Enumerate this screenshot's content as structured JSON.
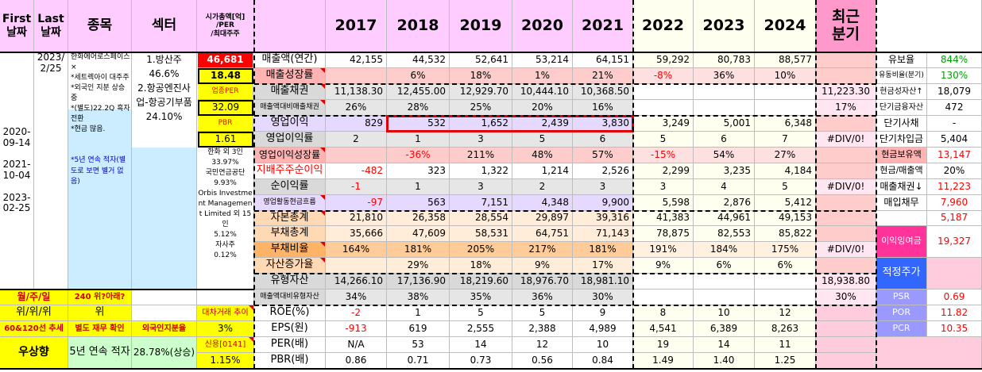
{
  "header": {
    "first_date": "First\n날짜",
    "last_date": "Last\n날짜",
    "stock": "종목",
    "sector": "섹터",
    "mcap_label": "시가총액[억]\n/PER\n/최대주주",
    "years": [
      "2017",
      "2018",
      "2019",
      "2020",
      "2021",
      "2022",
      "2023",
      "2024"
    ],
    "recent_quarter": "최근\n분기"
  },
  "info": {
    "first_dates": [
      "2020-",
      "09-14",
      "",
      "2021-",
      "10-04",
      "",
      "2023-",
      "02-25"
    ],
    "last_dates": [
      "2023/",
      "2/25"
    ],
    "company_notes": "한화에어로스페이스×\n*세트렉아이 대주주\n*외국인 지분 상승중\n*(별도)22.2Q 흑자 전환\n*현금 많음.",
    "company_notes2": "*5년 연속 적자(별도로 보면 별거 없음)",
    "sector_lines": [
      "1.방산주",
      "46.6%",
      "2.항공엔진사업-항공기부품",
      "24.10%"
    ],
    "market_cap": "46,681",
    "per": "18.48",
    "industry_per_label": "업종PER",
    "industry_per": "32.09",
    "pbr_label": "PBR",
    "pbr": "1.61",
    "shareholders": "한화 외 3인\n33.97%\n국민연금공단\n9.93%\nOrbis Investment Management Limited 외 15인\n5.12%\n자사주\n0.12%"
  },
  "rows": [
    {
      "label": "매출액(연간)",
      "vals": [
        "42,155",
        "44,532",
        "52,641",
        "53,214",
        "64,151",
        "59,292",
        "80,783",
        "88,577"
      ],
      "recent": ""
    },
    {
      "label": "매출성장률",
      "vals": [
        "",
        "6%",
        "18%",
        "1%",
        "21%",
        "-8%",
        "36%",
        "10%"
      ],
      "recent": ""
    },
    {
      "label": "매출채권",
      "vals": [
        "11,138.30",
        "12,455.00",
        "12,929.70",
        "10,444.10",
        "10,368.50",
        "",
        "",
        ""
      ],
      "recent": "11,223.30"
    },
    {
      "label": "매출액대비매출채권",
      "vals": [
        "26%",
        "28%",
        "25%",
        "20%",
        "16%",
        "",
        "",
        ""
      ],
      "recent": "17%"
    },
    {
      "label": "영업이익",
      "vals": [
        "829",
        "532",
        "1,652",
        "2,439",
        "3,830",
        "3,249",
        "5,001",
        "6,348"
      ],
      "recent": ""
    },
    {
      "label": "영업이익률",
      "vals": [
        "2",
        "1",
        "3",
        "5",
        "6",
        "5",
        "6",
        "7"
      ],
      "recent": "#DIV/0!"
    },
    {
      "label": "영업이익성장률",
      "vals": [
        "",
        "-36%",
        "211%",
        "48%",
        "57%",
        "-15%",
        "54%",
        "27%"
      ],
      "recent": ""
    },
    {
      "label": "지배주주순이익",
      "vals": [
        "-482",
        "323",
        "1,322",
        "1,214",
        "2,526",
        "2,299",
        "3,235",
        "4,184"
      ],
      "recent": ""
    },
    {
      "label": "순이익률",
      "vals": [
        "-1",
        "1",
        "3",
        "2",
        "3",
        "3",
        "4",
        "5"
      ],
      "recent": "#DIV/0!"
    },
    {
      "label": "영업활동현금흐름",
      "vals": [
        "-97",
        "563",
        "7,151",
        "4,348",
        "9,900",
        "5,598",
        "2,876",
        "5,412"
      ],
      "recent": ""
    },
    {
      "label": "자본총계",
      "vals": [
        "21,810",
        "26,358",
        "28,554",
        "29,897",
        "39,316",
        "41,383",
        "44,961",
        "49,153"
      ],
      "recent": ""
    },
    {
      "label": "부채총계",
      "vals": [
        "35,666",
        "47,609",
        "58,531",
        "64,751",
        "71,143",
        "78,875",
        "82,553",
        "85,822"
      ],
      "recent": ""
    },
    {
      "label": "부채비율",
      "vals": [
        "164%",
        "181%",
        "205%",
        "217%",
        "181%",
        "191%",
        "184%",
        "175%"
      ],
      "recent": "#DIV/0!"
    },
    {
      "label": "자산증가율",
      "vals": [
        "",
        "29%",
        "18%",
        "9%",
        "17%",
        "9%",
        "6%",
        "6%"
      ],
      "recent": ""
    },
    {
      "label": "유형자산",
      "vals": [
        "14,266.10",
        "17,136.90",
        "18,219.60",
        "18,976.70",
        "18,981.10",
        "",
        "",
        ""
      ],
      "recent": "18,938.80"
    },
    {
      "label": "매출액대비유형자산",
      "vals": [
        "34%",
        "38%",
        "35%",
        "36%",
        "30%",
        "",
        "",
        ""
      ],
      "recent": "30%"
    },
    {
      "label": "ROE(%)",
      "vals": [
        "-2",
        "1",
        "5",
        "5",
        "9",
        "8",
        "10",
        "12"
      ],
      "recent": ""
    },
    {
      "label": "EPS(원)",
      "vals": [
        "-913",
        "619",
        "2,555",
        "2,388",
        "4,989",
        "4,541",
        "6,389",
        "8,263"
      ],
      "recent": ""
    },
    {
      "label": "PER(배)",
      "vals": [
        "N/A",
        "53",
        "14",
        "12",
        "10",
        "19",
        "14",
        "11"
      ],
      "recent": ""
    },
    {
      "label": "PBR(배)",
      "vals": [
        "0.86",
        "0.71",
        "0.73",
        "0.56",
        "0.84",
        "1.49",
        "1.40",
        "1.25"
      ],
      "recent": ""
    }
  ],
  "side": [
    {
      "label": "유보율",
      "value": "844%"
    },
    {
      "label": "유동비율(분기)",
      "value": "130%"
    },
    {
      "label": "현금성자산↑",
      "value": "18,079"
    },
    {
      "label": "단기금융자산",
      "value": "472"
    },
    {
      "label": "단기사채",
      "value": "-"
    },
    {
      "label": "단기차입금",
      "value": "5,404"
    },
    {
      "label": "현금보유액",
      "value": "13,147"
    },
    {
      "label": "현금/매출액",
      "value": "20%"
    },
    {
      "label": "매출채권↓",
      "value": "11,223"
    },
    {
      "label": "매입채무",
      "value": "7,960"
    },
    {
      "label": "",
      "value": "5,187"
    },
    {
      "label": "이익잉여금",
      "value": "19,327"
    },
    {
      "label": "적정주가",
      "value": ""
    },
    {
      "label": "PSR",
      "value": "0.69"
    },
    {
      "label": "POR",
      "value": "11.82"
    },
    {
      "label": "PCR",
      "value": "10.35"
    }
  ],
  "bottom": {
    "trend_row1": "월/주/일",
    "trend_row1_v": "240 위?아래?",
    "trend_row2": "위/위/위",
    "trend_row2_v": "위",
    "trend_row3": "60&120선 추세",
    "trend_row3_v": "별도 재무 확인",
    "trend_row4": "우상향",
    "trend_row4_v": "5년 연속 적자",
    "foreign_label": "외국인지분율",
    "foreign_value": "28.78%(상승)",
    "loan_label": "대차거래 추이",
    "loan_value": "3%",
    "credit_label": "신용[0141]",
    "credit_value": "1.15%"
  },
  "colors": {
    "header_pink": "#ffccff",
    "year_bg": "#fffff0",
    "recent_bg": "#ff99cc",
    "yellow": "#ffff00",
    "red_cell": "#ff0000",
    "light_blue": "#ccecff",
    "green": "#ccffcc",
    "lavender": "#e6d9ff",
    "orange": "#ffd9b3",
    "gray": "#d9d9d9",
    "salmon": "#ffb3b3",
    "blue_btn": "#9999ff",
    "highlight": "#e00000"
  }
}
